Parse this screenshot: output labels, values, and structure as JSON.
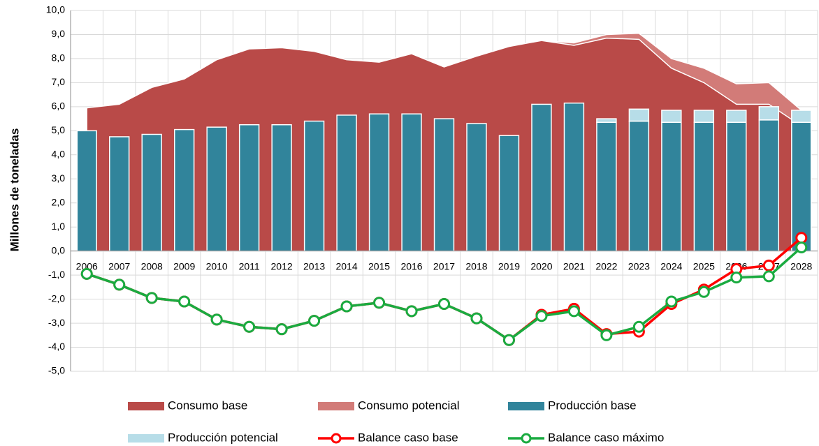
{
  "chart_data": {
    "type": "combo",
    "y_axis_label": "Millones de toneladas",
    "categories": [
      "2006",
      "2007",
      "2008",
      "2009",
      "2010",
      "2011",
      "2012",
      "2013",
      "2014",
      "2015",
      "2016",
      "2017",
      "2018",
      "2019",
      "2020",
      "2021",
      "2022",
      "2023",
      "2024",
      "2025",
      "2026",
      "2027",
      "2028"
    ],
    "ylim": [
      -5,
      10
    ],
    "yticks": [
      {
        "value": 10,
        "label": "10,0"
      },
      {
        "value": 9,
        "label": "9,0"
      },
      {
        "value": 8,
        "label": "8,0"
      },
      {
        "value": 7,
        "label": "7,0"
      },
      {
        "value": 6,
        "label": "6,0"
      },
      {
        "value": 5,
        "label": "5,0"
      },
      {
        "value": 4,
        "label": "4,0"
      },
      {
        "value": 3,
        "label": "3,0"
      },
      {
        "value": 2,
        "label": "2,0"
      },
      {
        "value": 1,
        "label": "1,0"
      },
      {
        "value": 0,
        "label": "0,0"
      },
      {
        "value": -1,
        "label": "-1,0"
      },
      {
        "value": -2,
        "label": "-2,0"
      },
      {
        "value": -3,
        "label": "-3,0"
      },
      {
        "value": -4,
        "label": "-4,0"
      },
      {
        "value": -5,
        "label": "-5,0"
      }
    ],
    "grid": true,
    "legend": "bottom",
    "series": [
      {
        "name": "Consumo base",
        "type": "area",
        "color": "#b94a48",
        "values": [
          5.95,
          6.1,
          6.8,
          7.15,
          7.95,
          8.4,
          8.45,
          8.3,
          7.95,
          7.85,
          8.2,
          7.65,
          8.1,
          8.5,
          8.75,
          8.55,
          8.85,
          8.8,
          7.6,
          7.0,
          6.1,
          6.1,
          5.2
        ]
      },
      {
        "name": "Consumo potencial",
        "type": "area",
        "color": "#d27b78",
        "values": [
          5.95,
          6.1,
          6.8,
          7.15,
          7.95,
          8.4,
          8.45,
          8.3,
          7.95,
          7.85,
          8.2,
          7.65,
          8.1,
          8.5,
          8.75,
          8.65,
          9.0,
          9.05,
          8.0,
          7.6,
          6.95,
          7.0,
          5.85
        ]
      },
      {
        "name": "Producción base",
        "type": "bar",
        "color": "#31849b",
        "values": [
          5.0,
          4.75,
          4.85,
          5.05,
          5.15,
          5.25,
          5.25,
          5.4,
          5.65,
          5.7,
          5.7,
          5.5,
          5.3,
          4.8,
          6.1,
          6.15,
          5.35,
          5.4,
          5.35,
          5.35,
          5.35,
          5.45,
          5.35
        ]
      },
      {
        "name": "Producción potencial",
        "type": "bar",
        "stacked": true,
        "color": "#b7dde8",
        "values": [
          null,
          null,
          null,
          null,
          null,
          null,
          null,
          null,
          null,
          null,
          null,
          null,
          null,
          null,
          null,
          null,
          0.15,
          0.5,
          0.5,
          0.5,
          0.5,
          0.55,
          0.5
        ]
      },
      {
        "name": "Balance caso base",
        "type": "line",
        "color": "#ff0000",
        "values": [
          -0.95,
          -1.4,
          -1.95,
          -2.1,
          -2.85,
          -3.15,
          -3.25,
          -2.9,
          -2.3,
          -2.15,
          -2.5,
          -2.2,
          -2.8,
          -3.7,
          -2.65,
          -2.4,
          -3.45,
          -3.35,
          -2.2,
          -1.6,
          -0.75,
          -0.6,
          0.55
        ]
      },
      {
        "name": "Balance caso máximo",
        "type": "line",
        "color": "#1aab40",
        "values": [
          -0.95,
          -1.4,
          -1.95,
          -2.1,
          -2.85,
          -3.15,
          -3.25,
          -2.9,
          -2.3,
          -2.15,
          -2.5,
          -2.2,
          -2.8,
          -3.7,
          -2.7,
          -2.5,
          -3.5,
          -3.15,
          -2.1,
          -1.7,
          -1.1,
          -1.05,
          0.15
        ]
      }
    ]
  }
}
